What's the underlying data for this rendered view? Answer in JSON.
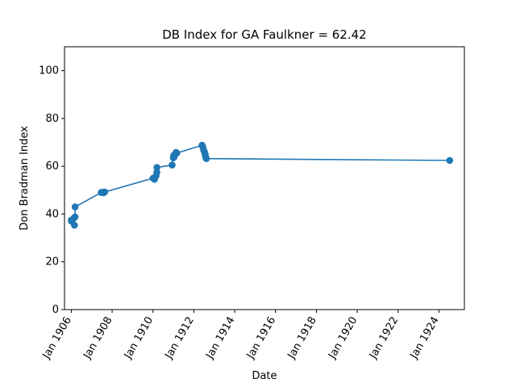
{
  "chart_data": {
    "type": "line",
    "title": "DB Index for GA Faulkner = 62.42",
    "xlabel": "Date",
    "ylabel": "Don Bradman Index",
    "ylim": [
      0,
      110
    ],
    "xlim": [
      "1905-09",
      "1925-04"
    ],
    "grid": false,
    "line_color": "#1f77b4",
    "marker": "circle",
    "y_ticks": [
      0,
      20,
      40,
      60,
      80,
      100
    ],
    "x_ticks": [
      {
        "date": "1906-01",
        "label": "Jan 1906"
      },
      {
        "date": "1908-01",
        "label": "Jan 1908"
      },
      {
        "date": "1910-01",
        "label": "Jan 1910"
      },
      {
        "date": "1912-01",
        "label": "Jan 1912"
      },
      {
        "date": "1914-01",
        "label": "Jan 1914"
      },
      {
        "date": "1916-01",
        "label": "Jan 1916"
      },
      {
        "date": "1918-01",
        "label": "Jan 1918"
      },
      {
        "date": "1920-01",
        "label": "Jan 1920"
      },
      {
        "date": "1922-01",
        "label": "Jan 1922"
      },
      {
        "date": "1924-01",
        "label": "Jan 1924"
      }
    ],
    "series": [
      {
        "points": [
          {
            "x": "1906-01-02",
            "y": 37.5
          },
          {
            "x": "1906-01-03",
            "y": 37.0
          },
          {
            "x": "1906-02-24",
            "y": 38.5
          },
          {
            "x": "1906-02-26",
            "y": 35.3
          },
          {
            "x": "1906-03-08",
            "y": 38.8
          },
          {
            "x": "1906-03-10",
            "y": 43.0
          },
          {
            "x": "1907-06-20",
            "y": 49.0
          },
          {
            "x": "1907-07-18",
            "y": 49.1
          },
          {
            "x": "1907-08-01",
            "y": 48.9
          },
          {
            "x": "1907-08-20",
            "y": 49.2
          },
          {
            "x": "1910-01-01",
            "y": 55.0
          },
          {
            "x": "1910-01-28",
            "y": 54.5
          },
          {
            "x": "1910-02-25",
            "y": 56.0
          },
          {
            "x": "1910-03-11",
            "y": 57.5
          },
          {
            "x": "1910-03-12",
            "y": 59.5
          },
          {
            "x": "1910-12-09",
            "y": 60.5
          },
          {
            "x": "1910-12-30",
            "y": 63.5
          },
          {
            "x": "1911-01-06",
            "y": 64.5
          },
          {
            "x": "1911-01-13",
            "y": 63.8
          },
          {
            "x": "1911-02-03",
            "y": 65.0
          },
          {
            "x": "1911-02-17",
            "y": 65.8
          },
          {
            "x": "1911-03-03",
            "y": 65.5
          },
          {
            "x": "1912-05-27",
            "y": 68.8
          },
          {
            "x": "1912-06-10",
            "y": 68.0
          },
          {
            "x": "1912-06-24",
            "y": 66.8
          },
          {
            "x": "1912-07-08",
            "y": 66.0
          },
          {
            "x": "1912-07-22",
            "y": 65.0
          },
          {
            "x": "1912-07-29",
            "y": 64.0
          },
          {
            "x": "1912-08-05",
            "y": 63.5
          },
          {
            "x": "1912-08-12",
            "y": 63.2
          },
          {
            "x": "1924-07-12",
            "y": 62.42
          }
        ]
      }
    ]
  }
}
